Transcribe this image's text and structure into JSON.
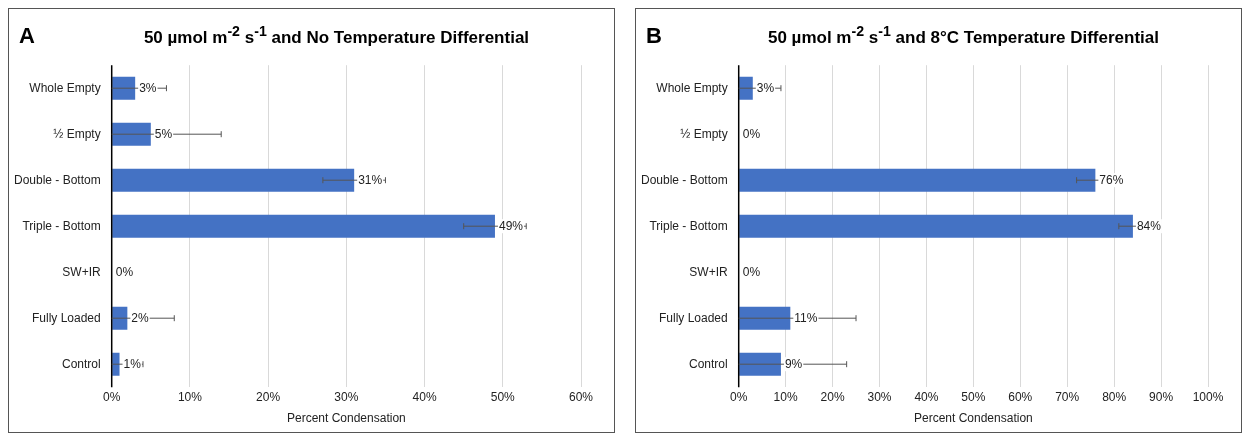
{
  "chart_data": [
    {
      "type": "bar",
      "orientation": "horizontal",
      "title": "50 µmol m$^{-2}$ s$^{-1}$ and No Temperature Differential",
      "annotations": [
        "A"
      ],
      "xlabel": "Percent Condensation",
      "categories": [
        "Whole Empty",
        "½ Empty",
        "Double - Bottom",
        "Triple - Bottom",
        "SW+IR",
        "Fully Loaded",
        "Control"
      ],
      "series": [
        {
          "color": "#4472c4",
          "values": [
            3,
            5,
            31,
            49,
            0,
            2,
            1
          ],
          "value_labels": [
            "3%",
            "5%",
            "31%",
            "49%",
            "0%",
            "2%",
            "1%"
          ],
          "errors": [
            [
              0,
              7
            ],
            [
              0,
              14
            ],
            [
              27,
              35
            ],
            [
              45,
              53
            ],
            null,
            [
              0,
              8
            ],
            [
              0,
              4
            ]
          ]
        }
      ],
      "xlim": [
        0,
        60
      ],
      "xticks": [
        {
          "value": 0,
          "label": "0%"
        },
        {
          "value": 10,
          "label": "10%"
        },
        {
          "value": 20,
          "label": "20%"
        },
        {
          "value": 30,
          "label": "30%"
        },
        {
          "value": 40,
          "label": "40%"
        },
        {
          "value": 50,
          "label": "50%"
        },
        {
          "value": 60,
          "label": "60%"
        }
      ],
      "grid": "x",
      "legend": false
    },
    {
      "type": "bar",
      "orientation": "horizontal",
      "title": "50 µmol m$^{-2}$ s$^{-1}$ and 8°C Temperature Differential",
      "annotations": [
        "B"
      ],
      "xlabel": "Percent Condensation",
      "categories": [
        "Whole Empty",
        "½ Empty",
        "Double - Bottom",
        "Triple - Bottom",
        "SW+IR",
        "Fully Loaded",
        "Control"
      ],
      "series": [
        {
          "color": "#4472c4",
          "values": [
            3,
            0,
            76,
            84,
            0,
            11,
            9
          ],
          "value_labels": [
            "3%",
            "0%",
            "76%",
            "84%",
            "0%",
            "11%",
            "9%"
          ],
          "errors": [
            [
              0,
              9
            ],
            null,
            [
              72,
              80
            ],
            [
              81,
              87
            ],
            null,
            [
              0,
              25
            ],
            [
              0,
              23
            ]
          ]
        }
      ],
      "xlim": [
        0,
        100
      ],
      "xticks": [
        {
          "value": 0,
          "label": "0%"
        },
        {
          "value": 10,
          "label": "10%"
        },
        {
          "value": 20,
          "label": "20%"
        },
        {
          "value": 30,
          "label": "30%"
        },
        {
          "value": 40,
          "label": "40%"
        },
        {
          "value": 50,
          "label": "50%"
        },
        {
          "value": 60,
          "label": "60%"
        },
        {
          "value": 70,
          "label": "70%"
        },
        {
          "value": 80,
          "label": "80%"
        },
        {
          "value": 90,
          "label": "90%"
        },
        {
          "value": 100,
          "label": "100%"
        }
      ],
      "grid": "x",
      "legend": false
    }
  ]
}
